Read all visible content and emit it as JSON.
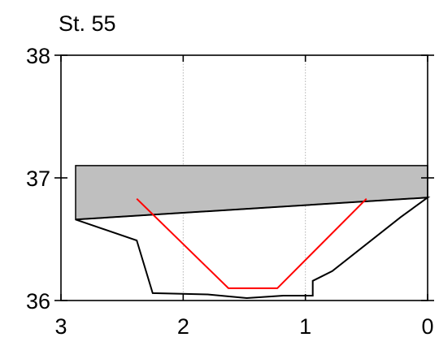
{
  "chart_data": {
    "type": "line",
    "title": "St. 55",
    "xlabel": "",
    "ylabel": "",
    "xlim": [
      3,
      0
    ],
    "ylim": [
      36,
      38
    ],
    "x_reversed": true,
    "grid": "vertical dotted lines at x ticks",
    "xticks": [
      3,
      2,
      1,
      0
    ],
    "xtick_labels": [
      "3",
      "2",
      "1",
      "0"
    ],
    "yticks": [
      36,
      37,
      38
    ],
    "ytick_labels": [
      "36",
      "37",
      "38"
    ],
    "colors": {
      "fill": "#bfbfbf",
      "outline": "#000000",
      "highlight": "#ff0000",
      "grid": "#b3b3b3"
    },
    "series": [
      {
        "style": "filled-polygon",
        "color": "#bfbfbf",
        "points": [
          [
            2.88,
            37.1
          ],
          [
            0.0,
            37.1
          ],
          [
            0.0,
            36.84
          ],
          [
            2.88,
            36.66
          ]
        ]
      },
      {
        "style": "line",
        "color": "#000000",
        "points": [
          [
            2.88,
            36.66
          ],
          [
            0.0,
            36.84
          ],
          [
            0.22,
            36.68
          ],
          [
            0.78,
            36.24
          ],
          [
            0.9,
            36.18
          ],
          [
            0.94,
            36.16
          ],
          [
            0.94,
            36.04
          ],
          [
            1.18,
            36.04
          ],
          [
            1.48,
            36.02
          ],
          [
            1.8,
            36.05
          ],
          [
            2.25,
            36.06
          ],
          [
            2.38,
            36.49
          ],
          [
            2.88,
            36.66
          ]
        ]
      },
      {
        "style": "line",
        "color": "#ff0000",
        "points": [
          [
            2.38,
            36.83
          ],
          [
            1.63,
            36.1
          ],
          [
            1.23,
            36.1
          ],
          [
            0.5,
            36.83
          ]
        ]
      }
    ]
  }
}
